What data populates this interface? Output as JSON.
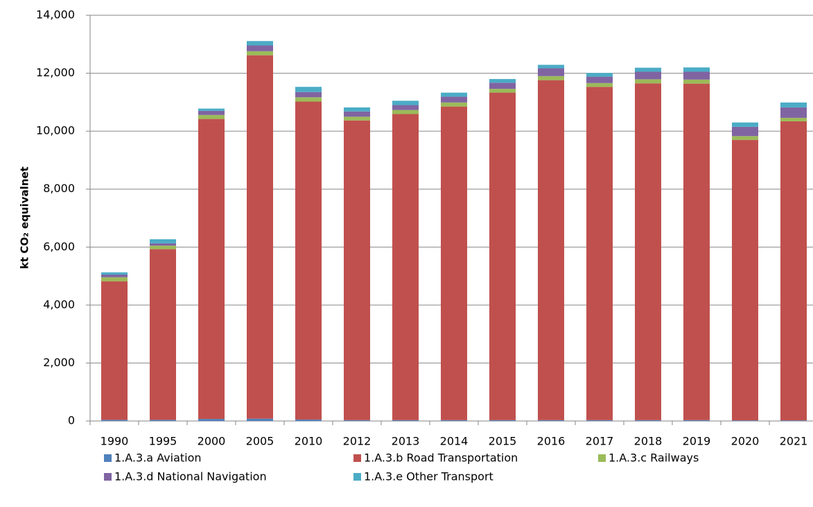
{
  "chart_data": {
    "type": "stacked_bar",
    "y_label": "kt CO₂ equivalnet",
    "categories": [
      "1990",
      "1995",
      "2000",
      "2005",
      "2010",
      "2012",
      "2013",
      "2014",
      "2015",
      "2016",
      "2017",
      "2018",
      "2019",
      "2020",
      "2021"
    ],
    "series": [
      {
        "name": "1.A.3.a Aviation",
        "color": "#4f81bd",
        "values": [
          40,
          40,
          70,
          80,
          50,
          30,
          30,
          30,
          30,
          30,
          30,
          30,
          30,
          20,
          20
        ]
      },
      {
        "name": "1.A.3.b Road Transportation",
        "color": "#c0504d",
        "values": [
          4780,
          5890,
          10350,
          12540,
          10970,
          10340,
          10560,
          10820,
          11300,
          11730,
          11500,
          11620,
          11610,
          9680,
          10320
        ]
      },
      {
        "name": "1.A.3.c Railways",
        "color": "#9bbb59",
        "values": [
          140,
          120,
          140,
          140,
          150,
          130,
          140,
          140,
          130,
          140,
          130,
          140,
          140,
          130,
          120
        ]
      },
      {
        "name": "1.A.3.d National Navigation",
        "color": "#8064a2",
        "values": [
          90,
          80,
          140,
          200,
          180,
          180,
          170,
          200,
          210,
          270,
          220,
          260,
          270,
          320,
          360
        ]
      },
      {
        "name": "1.A.3.e Other Transport",
        "color": "#4bacc6",
        "values": [
          80,
          140,
          80,
          150,
          180,
          140,
          150,
          140,
          130,
          120,
          130,
          140,
          150,
          150,
          170
        ]
      }
    ],
    "ylim": [
      0,
      14000
    ],
    "yticks": [
      0,
      {
        "value": 2000,
        "label": "2,000"
      },
      {
        "value": 4000,
        "label": "4,000"
      },
      {
        "value": 6000,
        "label": "6,000"
      },
      {
        "value": 8000,
        "label": "8,000"
      },
      {
        "value": 10000,
        "label": "10,000"
      },
      {
        "value": 12000,
        "label": "12,000"
      },
      {
        "value": 14000,
        "label": "14,000"
      }
    ],
    "grid": true,
    "legend": "bottom"
  }
}
